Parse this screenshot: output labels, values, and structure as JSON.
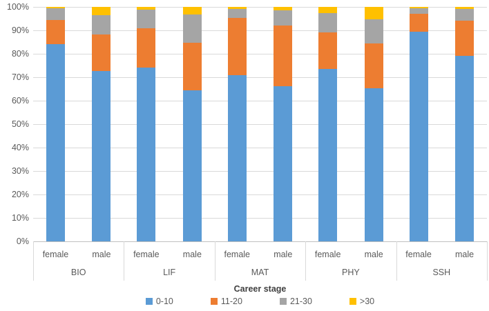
{
  "chart_data": {
    "type": "bar",
    "variant": "100-percent-stacked-column",
    "title": "",
    "legend_title": "Career stage",
    "legend_position": "bottom",
    "grid": true,
    "ylim": [
      0,
      100
    ],
    "y_ticks": [
      "0%",
      "10%",
      "20%",
      "30%",
      "40%",
      "50%",
      "60%",
      "70%",
      "80%",
      "90%",
      "100%"
    ],
    "groups": [
      "BIO",
      "LIF",
      "MAT",
      "PHY",
      "SSH"
    ],
    "bar_labels": [
      "female",
      "male"
    ],
    "columns_order": [
      "BIO female",
      "BIO male",
      "LIF female",
      "LIF male",
      "MAT female",
      "MAT male",
      "PHY female",
      "PHY male",
      "SSH female",
      "SSH male"
    ],
    "series": [
      {
        "name": "0-10",
        "color": "#5B9BD5",
        "values": [
          84.0,
          72.7,
          74.0,
          64.4,
          71.0,
          66.3,
          73.4,
          65.4,
          89.3,
          79.0
        ]
      },
      {
        "name": "11-20",
        "color": "#ED7D31",
        "values": [
          10.3,
          15.5,
          17.0,
          20.2,
          24.4,
          25.9,
          15.6,
          19.1,
          7.8,
          15.2
        ]
      },
      {
        "name": "21-30",
        "color": "#A5A5A5",
        "values": [
          5.0,
          8.4,
          7.8,
          12.1,
          3.8,
          6.4,
          8.4,
          10.2,
          2.3,
          4.8
        ]
      },
      {
        "name": ">30",
        "color": "#FFC000",
        "values": [
          0.7,
          3.4,
          1.2,
          3.3,
          0.8,
          1.4,
          2.6,
          5.3,
          0.6,
          1.0
        ]
      }
    ]
  },
  "colors": {
    "axis_text": "#595959",
    "gridline": "#D9D9D9",
    "axis_line": "#BFBFBF",
    "background": "#FFFFFF"
  }
}
